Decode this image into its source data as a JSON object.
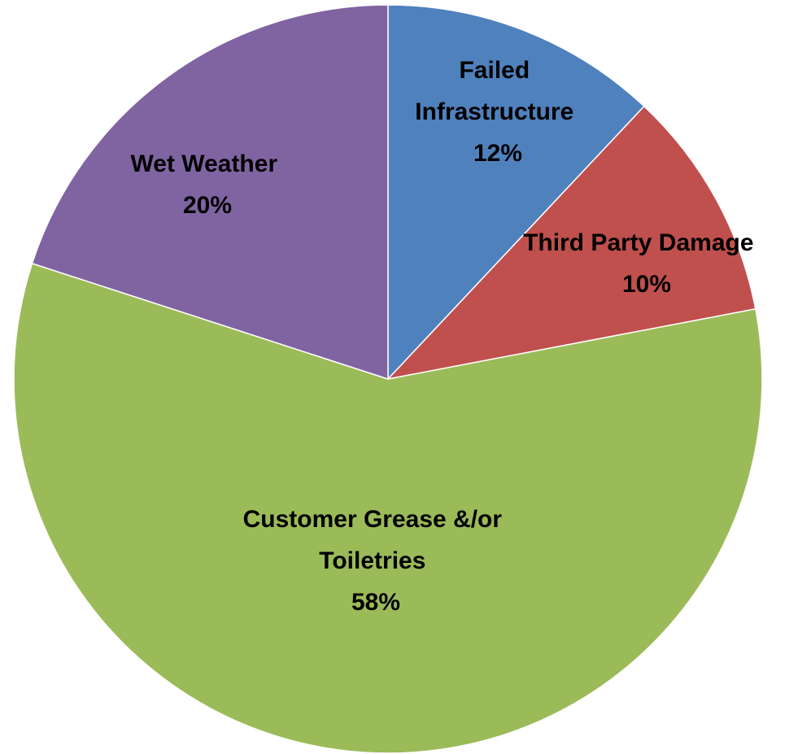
{
  "chart_data": {
    "type": "pie",
    "title": "",
    "start_angle_deg": 0,
    "direction": "clockwise",
    "slices": [
      {
        "label_lines": [
          "Failed",
          "Infrastructure"
        ],
        "value": 12,
        "value_label": "12%",
        "color": "#4F81BD"
      },
      {
        "label_lines": [
          "Third Party Damage"
        ],
        "value": 10,
        "value_label": "10%",
        "color": "#C0504D"
      },
      {
        "label_lines": [
          "Customer Grease &/or",
          "Toiletries"
        ],
        "value": 58,
        "value_label": "58%",
        "color": "#9BBB59"
      },
      {
        "label_lines": [
          "Wet Weather"
        ],
        "value": 20,
        "value_label": "20%",
        "color": "#8064A2"
      }
    ],
    "legend": "none"
  }
}
